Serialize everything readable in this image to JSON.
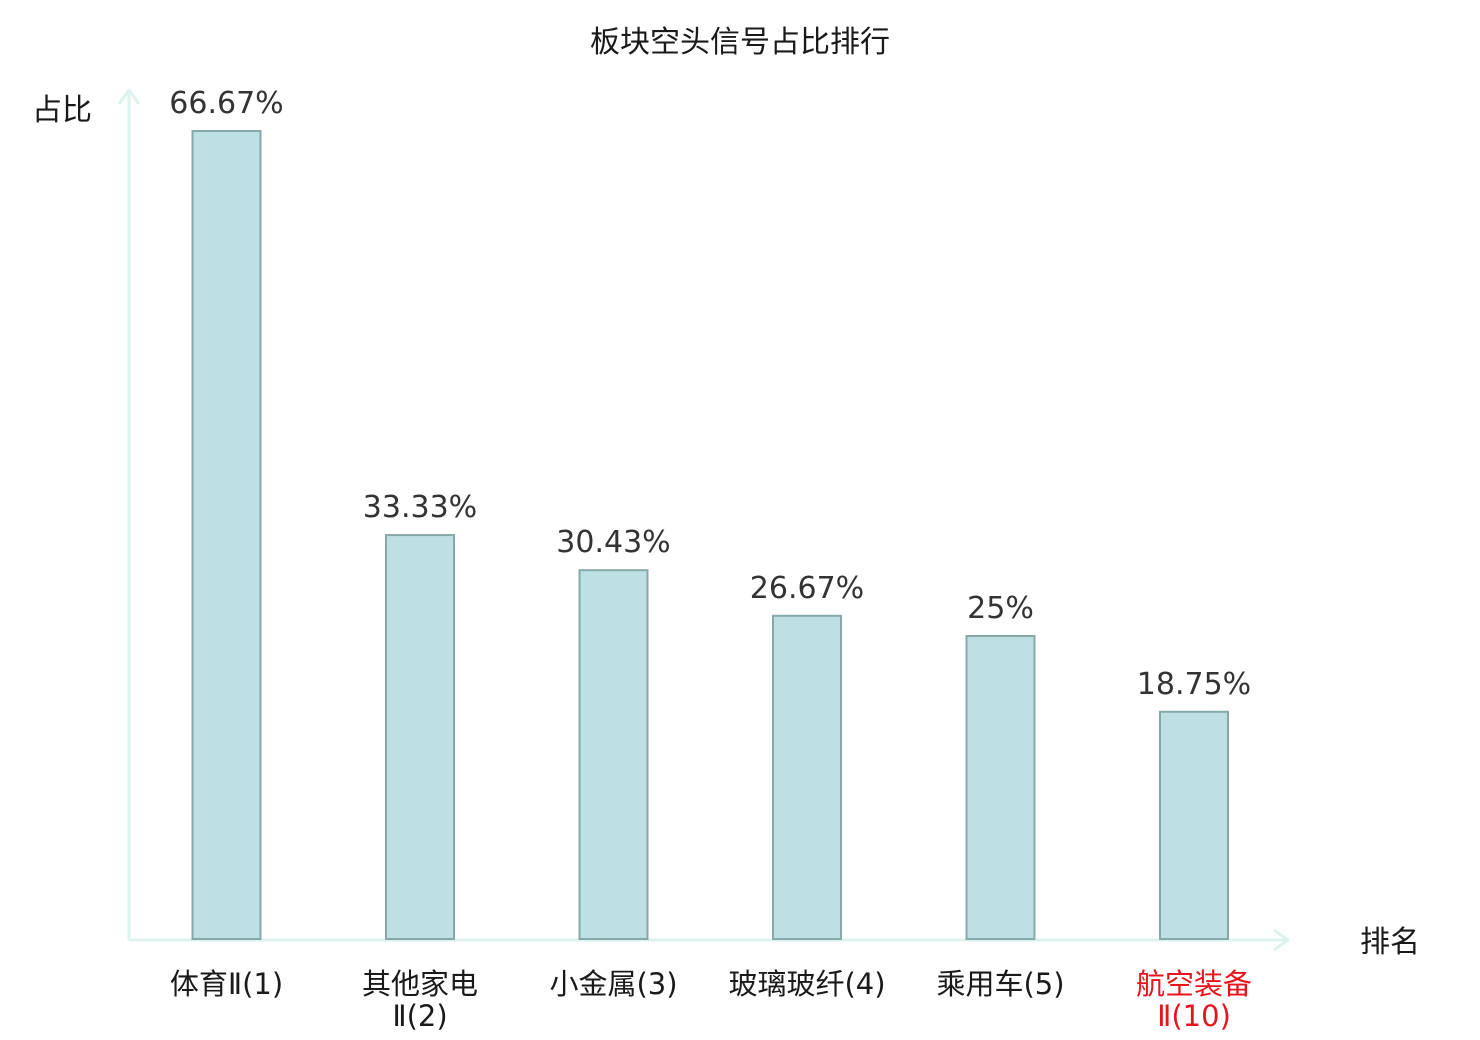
{
  "chart_data": {
    "type": "bar",
    "title": "板块空头信号占比排行",
    "ylabel": "占比",
    "xlabel": "排名",
    "categories": [
      {
        "lines": [
          "体育Ⅱ(1)"
        ],
        "highlight": false
      },
      {
        "lines": [
          "其他家电",
          "Ⅱ(2)"
        ],
        "highlight": false
      },
      {
        "lines": [
          "小金属(3)"
        ],
        "highlight": false
      },
      {
        "lines": [
          "玻璃玻纤(4)"
        ],
        "highlight": false
      },
      {
        "lines": [
          "乘用车(5)"
        ],
        "highlight": false
      },
      {
        "lines": [
          "航空装备",
          "Ⅱ(10)"
        ],
        "highlight": true
      }
    ],
    "values": [
      66.67,
      33.33,
      30.43,
      26.67,
      25,
      18.75
    ],
    "value_labels": [
      "66.67%",
      "33.33%",
      "30.43%",
      "26.67%",
      "25%",
      "18.75%"
    ],
    "ylim": [
      0,
      66.67
    ],
    "grid": false,
    "legend": "none",
    "colors": {
      "bar_fill": "#bde0e2",
      "bar_stroke": "#86a8a9",
      "axis": "#dcf2ef",
      "text": "#1a1a1a",
      "value_text": "#333333",
      "highlight": "#e8141c"
    }
  }
}
